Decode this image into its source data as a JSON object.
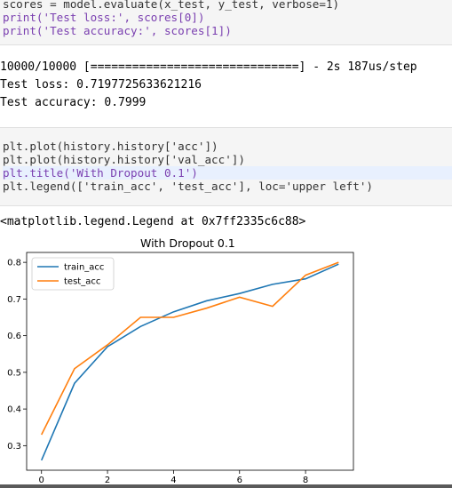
{
  "cell1": {
    "line1": "scores = model.evaluate(x_test, y_test, verbose=1)",
    "line2": "print('Test loss:', scores[0])",
    "line3": "print('Test accuracy:', scores[1])"
  },
  "output1": {
    "progress": "10000/10000 [==============================] - 2s 187us/step",
    "loss": "Test loss: 0.7197725633621216",
    "accuracy": "Test accuracy: 0.7999"
  },
  "cell2": {
    "line1": "plt.plot(history.history['acc'])",
    "line2": "plt.plot(history.history['val_acc'])",
    "line3": "plt.title('With Dropout 0.1')",
    "line4": "plt.legend(['train_acc', 'test_acc'], loc='upper left')"
  },
  "output2": {
    "legend_repr": "<matplotlib.legend.Legend at 0x7ff2335c6c88>"
  },
  "chart_data": {
    "type": "line",
    "title": "With Dropout 0.1",
    "x": [
      0,
      1,
      2,
      3,
      4,
      5,
      6,
      7,
      8,
      9
    ],
    "series": [
      {
        "name": "train_acc",
        "color": "#1f77b4",
        "values": [
          0.26,
          0.47,
          0.57,
          0.625,
          0.665,
          0.695,
          0.715,
          0.74,
          0.755,
          0.795
        ]
      },
      {
        "name": "test_acc",
        "color": "#ff7f0e",
        "values": [
          0.33,
          0.51,
          0.575,
          0.65,
          0.65,
          0.675,
          0.705,
          0.68,
          0.765,
          0.8
        ]
      }
    ],
    "xticks": [
      "0",
      "2",
      "4",
      "6",
      "8"
    ],
    "yticks": [
      "0.3",
      "0.4",
      "0.5",
      "0.6",
      "0.7",
      "0.8"
    ],
    "xlim": [
      -0.45,
      9.45
    ],
    "ylim": [
      0.233,
      0.827
    ],
    "legend_loc": "upper left"
  }
}
